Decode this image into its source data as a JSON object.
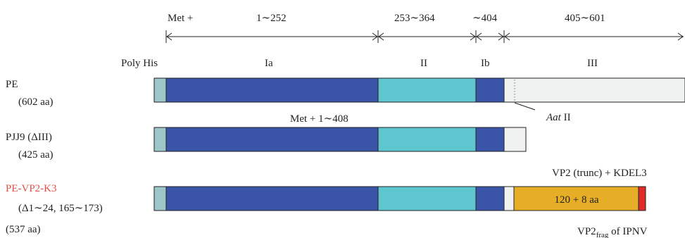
{
  "ruler": {
    "segments": [
      {
        "label": "Met +"
      },
      {
        "label": "1∼252"
      },
      {
        "label": "253∼364"
      },
      {
        "label": "∼404"
      },
      {
        "label": "405∼601"
      }
    ]
  },
  "domains": {
    "poly_his": "Poly His",
    "ia": "Ia",
    "ii": "II",
    "ib": "Ib",
    "iii": "III"
  },
  "constructs": [
    {
      "name": "PE",
      "detail": "(602 aa)"
    },
    {
      "name": "PJJ9 (ΔIII)",
      "detail": "(425 aa)"
    },
    {
      "name": "PE-VP2-K3",
      "detail": "(Δ1∼24, 165∼173)",
      "detail2": "(537 aa)"
    }
  ],
  "annotations": {
    "met_range": "Met + 1∼408",
    "aat_italic": "Aat",
    "aat_suffix": " II",
    "vp2_trunc": "VP2 (trunc) + KDEL3",
    "vp2_box": "120 + 8 aa",
    "vp2_frag_main": "VP2",
    "vp2_frag_sub": "frag",
    "vp2_frag_suffix": " of IPNV"
  },
  "colors": {
    "poly_his": "#9dc6c8",
    "ia": "#3a55a8",
    "ii": "#5ec6d1",
    "ib": "#3a55a8",
    "iii": "#f0f2f2",
    "vp2": "#e6ad27",
    "kdel": "#e02a2a",
    "name_highlight": "#e0504a"
  }
}
